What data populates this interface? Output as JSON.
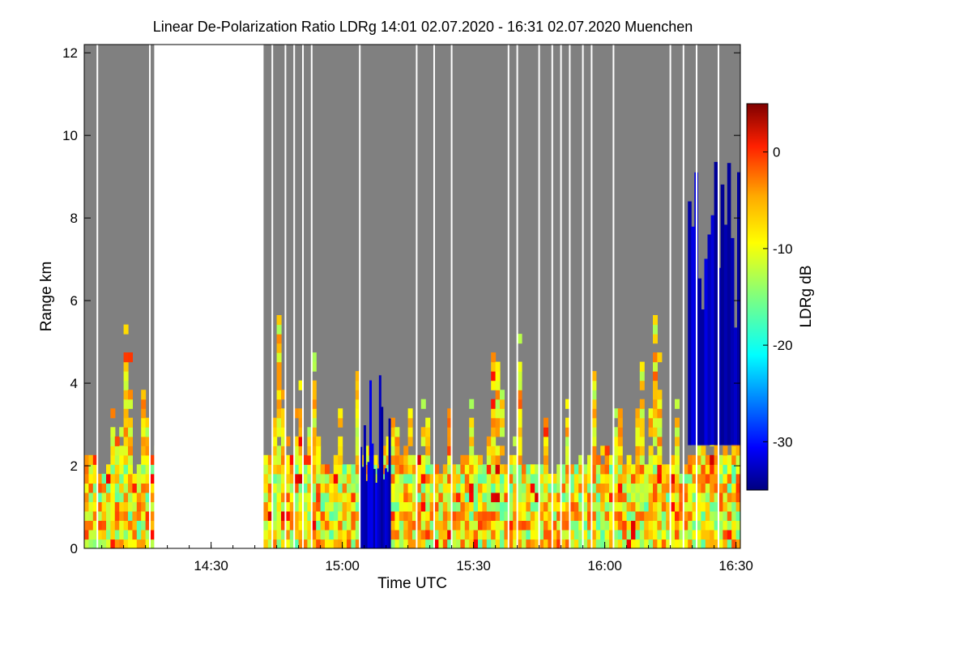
{
  "chart_data": {
    "type": "heatmap",
    "title": "Linear De-Polarization Ratio LDRg   14:01 02.07.2020 - 16:31 02.07.2020 Muenchen",
    "xlabel": "Time UTC",
    "ylabel": "Range km",
    "xlim": [
      "14:01",
      "16:31"
    ],
    "ylim": [
      0,
      12.2
    ],
    "x_ticks": [
      "14:30",
      "15:00",
      "15:30",
      "16:00",
      "16:30"
    ],
    "y_ticks": [
      "0",
      "2",
      "4",
      "6",
      "8",
      "10",
      "12"
    ],
    "colorbar": {
      "label": "LDRg dB",
      "range": [
        -35,
        5
      ],
      "ticks": [
        "0",
        "-10",
        "-20",
        "-30"
      ],
      "colormap": "jet"
    },
    "background_color": "#808080",
    "no_data_color": "#ffffff",
    "data_gap": [
      "14:17",
      "14:42"
    ],
    "profile_gaps": [
      "14:04",
      "14:16",
      "14:44",
      "14:47",
      "14:49",
      "14:51",
      "14:53",
      "15:04",
      "15:17",
      "15:21",
      "15:25",
      "15:38",
      "15:40",
      "15:45",
      "15:48",
      "15:50",
      "15:52",
      "15:55",
      "15:57",
      "16:02",
      "16:15",
      "16:18",
      "16:21",
      "16:26"
    ],
    "features": [
      {
        "description": "low-level backscatter layer",
        "range_km": [
          0,
          2.0
        ],
        "ldr_db": -10
      },
      {
        "description": "convective plumes",
        "range_km": [
          2.0,
          6.5
        ],
        "ldr_db": -9
      },
      {
        "description": "low-depolarization precipitation column",
        "time": [
          "15:04",
          "15:11"
        ],
        "range_km": [
          0,
          4.2
        ],
        "ldr_db": -32
      },
      {
        "description": "high low-depolarization cloud streaks",
        "time": [
          "16:19",
          "16:31"
        ],
        "range_km": [
          2.5,
          10.0
        ],
        "ldr_db": -33
      }
    ]
  }
}
